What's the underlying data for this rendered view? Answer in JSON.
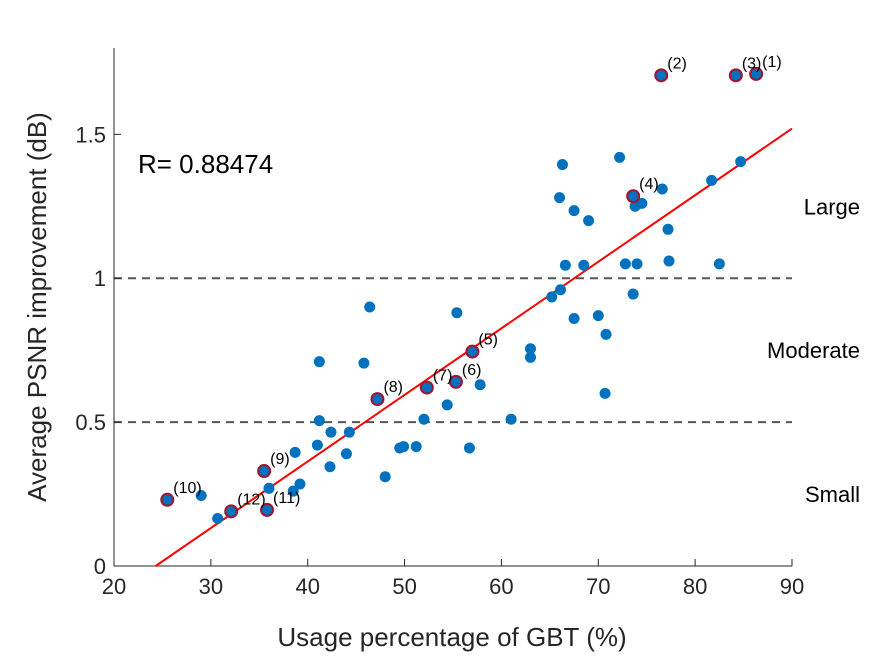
{
  "chart_data": {
    "type": "scatter",
    "xlabel": "Usage percentage of GBT (%)",
    "ylabel": "Average PSNR improvement (dB)",
    "xlim": [
      20,
      90
    ],
    "ylim": [
      0,
      1.8
    ],
    "xticks": [
      "20",
      "30",
      "40",
      "50",
      "60",
      "70",
      "80",
      "90"
    ],
    "yticks": [
      "0",
      "0.5",
      "1",
      "1.5"
    ],
    "xtick_values": [
      20,
      30,
      40,
      50,
      60,
      70,
      80,
      90
    ],
    "ytick_values": [
      0,
      0.5,
      1,
      1.5
    ],
    "annotation": "R= 0.88474",
    "regions": [
      {
        "label": "Large",
        "y": 1.25
      },
      {
        "label": "Moderate",
        "y": 0.75
      },
      {
        "label": "Small",
        "y": 0.25
      }
    ],
    "thresholds": [
      0.5,
      1.0
    ],
    "fit_line": {
      "x": [
        24.3,
        90
      ],
      "y": [
        0,
        1.52
      ],
      "color": "#ff0000"
    },
    "points": [
      [
        29,
        0.245
      ],
      [
        30.7,
        0.165
      ],
      [
        36,
        0.27
      ],
      [
        38.5,
        0.26
      ],
      [
        38.7,
        0.395
      ],
      [
        39.2,
        0.285
      ],
      [
        41,
        0.42
      ],
      [
        41.2,
        0.505
      ],
      [
        41.2,
        0.71
      ],
      [
        42.3,
        0.345
      ],
      [
        42.4,
        0.465
      ],
      [
        44,
        0.39
      ],
      [
        44.3,
        0.465
      ],
      [
        45.8,
        0.705
      ],
      [
        46.4,
        0.9
      ],
      [
        48,
        0.31
      ],
      [
        49.5,
        0.41
      ],
      [
        49.9,
        0.415
      ],
      [
        51.2,
        0.415
      ],
      [
        52,
        0.51
      ],
      [
        54.4,
        0.56
      ],
      [
        55.4,
        0.88
      ],
      [
        56.7,
        0.41
      ],
      [
        57.8,
        0.63
      ],
      [
        61,
        0.51
      ],
      [
        63,
        0.755
      ],
      [
        63,
        0.725
      ],
      [
        65.2,
        0.935
      ],
      [
        66,
        1.28
      ],
      [
        66.1,
        0.96
      ],
      [
        66.3,
        1.395
      ],
      [
        66.6,
        1.045
      ],
      [
        67.5,
        1.235
      ],
      [
        67.5,
        0.86
      ],
      [
        68.5,
        1.045
      ],
      [
        69,
        1.2
      ],
      [
        70,
        0.87
      ],
      [
        70.7,
        0.6
      ],
      [
        70.8,
        0.805
      ],
      [
        72.2,
        1.42
      ],
      [
        72.8,
        1.05
      ],
      [
        73.6,
        0.945
      ],
      [
        73.8,
        1.25
      ],
      [
        74,
        1.05
      ],
      [
        74.5,
        1.26
      ],
      [
        76.6,
        1.31
      ],
      [
        77.2,
        1.17
      ],
      [
        77.3,
        1.06
      ],
      [
        81.7,
        1.34
      ],
      [
        82.5,
        1.05
      ],
      [
        84.7,
        1.405
      ]
    ],
    "highlighted": [
      {
        "label": "(1)",
        "x": 86.3,
        "y": 1.71
      },
      {
        "label": "(2)",
        "x": 76.5,
        "y": 1.705
      },
      {
        "label": "(3)",
        "x": 84.2,
        "y": 1.705
      },
      {
        "label": "(4)",
        "x": 73.6,
        "y": 1.285
      },
      {
        "label": "(5)",
        "x": 57,
        "y": 0.745
      },
      {
        "label": "(6)",
        "x": 55.3,
        "y": 0.64
      },
      {
        "label": "(7)",
        "x": 52.3,
        "y": 0.62
      },
      {
        "label": "(8)",
        "x": 47.2,
        "y": 0.58
      },
      {
        "label": "(9)",
        "x": 35.5,
        "y": 0.33
      },
      {
        "label": "(10)",
        "x": 25.5,
        "y": 0.23
      },
      {
        "label": "(11)",
        "x": 35.8,
        "y": 0.195
      },
      {
        "label": "(12)",
        "x": 32.1,
        "y": 0.19
      }
    ],
    "colors": {
      "point": "#0072bd",
      "highlight_edge": "#a2142f",
      "fit": "#ff0000",
      "threshold": "#555555",
      "axis": "#262626"
    }
  }
}
